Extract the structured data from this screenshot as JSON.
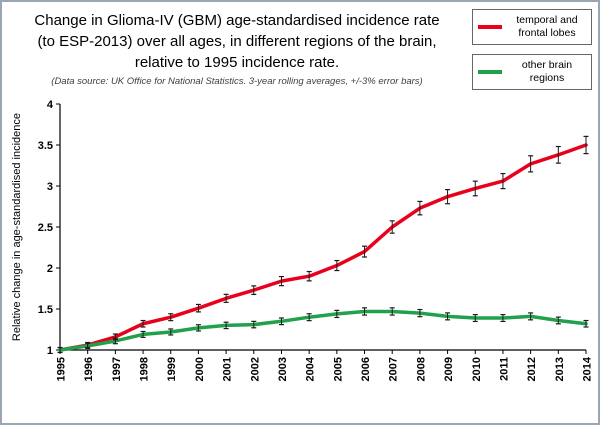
{
  "title": {
    "line1": "Change in Glioma-IV (GBM) age-standardised incidence rate",
    "line2": "(to ESP-2013) over all ages, in different regions of the brain,",
    "line3": "relative to 1995 incidence rate."
  },
  "subtitle": "(Data source: UK Office for National Statistics.  3-year rolling averages, +/-3% error bars)",
  "legend": {
    "items": [
      {
        "line1": "temporal and",
        "line2": "frontal lobes"
      },
      {
        "line1": "other brain",
        "line2": "regions"
      }
    ]
  },
  "chart_data": {
    "type": "line",
    "title": "Change in Glioma-IV (GBM) age-standardised incidence rate (to ESP-2013) over all ages, in different regions of the brain, relative to 1995 incidence rate.",
    "source_note": "(Data source: UK Office for National Statistics.  3-year rolling averages, +/-3% error bars)",
    "x": [
      1995,
      1996,
      1997,
      1998,
      1999,
      2000,
      2001,
      2002,
      2003,
      2004,
      2005,
      2006,
      2007,
      2008,
      2009,
      2010,
      2011,
      2012,
      2013,
      2014
    ],
    "series": [
      {
        "name": "temporal and frontal lobes",
        "color": "#e8001c",
        "values": [
          1.0,
          1.06,
          1.16,
          1.32,
          1.4,
          1.51,
          1.63,
          1.73,
          1.84,
          1.9,
          2.03,
          2.2,
          2.5,
          2.73,
          2.87,
          2.97,
          3.06,
          3.27,
          3.38,
          3.5
        ]
      },
      {
        "name": "other brain regions",
        "color": "#21a14b",
        "values": [
          1.0,
          1.05,
          1.11,
          1.19,
          1.22,
          1.27,
          1.3,
          1.31,
          1.35,
          1.4,
          1.44,
          1.47,
          1.47,
          1.45,
          1.41,
          1.39,
          1.39,
          1.41,
          1.36,
          1.32
        ]
      }
    ],
    "xlabel": "",
    "ylabel": "Relative change in age-standardised incidence",
    "ylim": [
      1,
      4
    ],
    "yticks": [
      1,
      1.5,
      2,
      2.5,
      3,
      3.5,
      4
    ],
    "error_pct": 3,
    "grid": false,
    "legend_position": "top-right"
  }
}
